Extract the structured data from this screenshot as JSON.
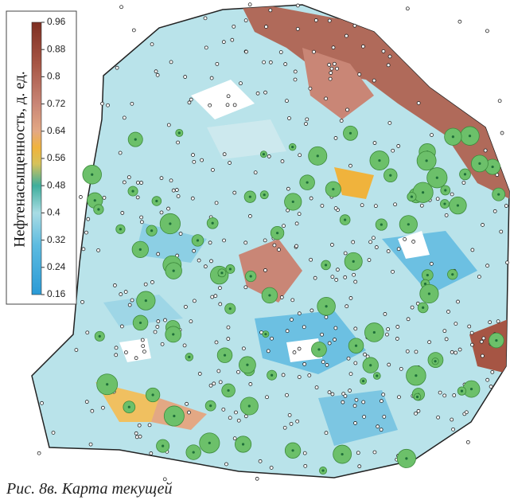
{
  "legend": {
    "title": "Нефтенасыщенность, д. ед.",
    "ticks": [
      0.96,
      0.88,
      0.8,
      0.72,
      0.64,
      0.56,
      0.48,
      0.4,
      0.32,
      0.24,
      0.16
    ]
  },
  "caption": "Рис. 8в. Карта текущей"
}
